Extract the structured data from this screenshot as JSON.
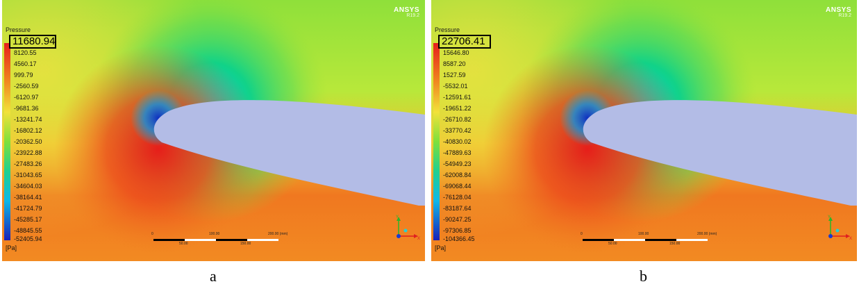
{
  "panels": [
    {
      "brand": "ANSYS",
      "version": "R19.2",
      "legend_title": "Pressure",
      "legend_max": "11680.94",
      "legend_values": [
        "8120.55",
        "4560.17",
        "999.79",
        "-2560.59",
        "-6120.97",
        "-9681.36",
        "-13241.74",
        "-16802.12",
        "-20362.50",
        "-23922.88",
        "-27483.26",
        "-31043.65",
        "-34604.03",
        "-38164.41",
        "-41724.79",
        "-45285.17",
        "-48845.55",
        "-52405.94"
      ],
      "unit": "[Pa]",
      "scale_top": [
        "0",
        "100.00",
        "200.00 (mm)"
      ],
      "scale_bottom": [
        "50.00",
        "150.00"
      ],
      "caption": "a"
    },
    {
      "brand": "ANSYS",
      "version": "R19.2",
      "legend_title": "Pressure",
      "legend_max": "22706.41",
      "legend_values": [
        "15646.80",
        "8587.20",
        "1527.59",
        "-5532.01",
        "-12591.61",
        "-19651.22",
        "-26710.82",
        "-33770.42",
        "-40830.02",
        "-47889.63",
        "-54949.23",
        "-62008.84",
        "-69068.44",
        "-76128.04",
        "-83187.64",
        "-90247.25",
        "-97306.85",
        "-104366.45"
      ],
      "unit": "[Pa]",
      "scale_top": [
        "0",
        "100.00",
        "200.00 (mm)"
      ],
      "scale_bottom": [
        "50.00",
        "150.00"
      ],
      "caption": "b"
    }
  ],
  "colors": {
    "airfoil": "#b3bce6",
    "background_far": "#8fe03a",
    "stagnation": "#e8231a"
  }
}
